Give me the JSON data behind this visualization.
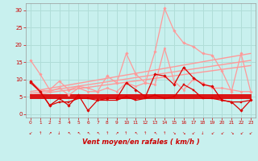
{
  "xlabel": "Vent moyen/en rafales ( km/h )",
  "background_color": "#c8f0ee",
  "grid_color": "#b0ddd8",
  "xlim": [
    -0.5,
    23.5
  ],
  "ylim": [
    -1,
    32
  ],
  "yticks": [
    0,
    5,
    10,
    15,
    20,
    25,
    30
  ],
  "xticks": [
    0,
    1,
    2,
    3,
    4,
    5,
    6,
    7,
    8,
    9,
    10,
    11,
    12,
    13,
    14,
    15,
    16,
    17,
    18,
    19,
    20,
    21,
    22,
    23
  ],
  "series": {
    "light_jagged1": {
      "x": [
        0,
        1,
        2,
        3,
        4,
        5,
        6,
        7,
        8,
        9,
        10,
        11,
        12,
        13,
        14,
        15,
        16,
        17,
        18,
        19,
        20,
        21,
        22,
        23
      ],
      "y": [
        15.5,
        11.5,
        7.0,
        9.5,
        7.0,
        8.0,
        7.5,
        6.5,
        11.0,
        9.0,
        17.5,
        11.5,
        9.0,
        18.0,
        30.5,
        24.0,
        20.5,
        19.5,
        17.5,
        17.0,
        12.5,
        6.5,
        17.5,
        6.5
      ],
      "color": "#ff9999",
      "lw": 0.9,
      "marker": "D",
      "ms": 1.8
    },
    "light_line2": {
      "x": [
        0,
        1,
        2,
        3,
        4,
        5,
        6,
        7,
        8,
        9,
        10,
        11,
        12,
        13,
        14,
        15,
        16,
        17,
        18,
        19,
        20,
        21,
        22,
        23
      ],
      "y": [
        9.5,
        7.0,
        6.5,
        7.5,
        5.5,
        7.5,
        6.5,
        6.5,
        7.5,
        6.5,
        9.0,
        8.0,
        9.0,
        8.5,
        19.0,
        9.5,
        7.0,
        10.0,
        9.0,
        7.5,
        7.5,
        7.0,
        6.5,
        6.5
      ],
      "color": "#ff9999",
      "lw": 0.9,
      "marker": "o",
      "ms": 1.8
    },
    "light_trend1": {
      "x": [
        0,
        23
      ],
      "y": [
        6.5,
        17.5
      ],
      "color": "#ff9999",
      "lw": 1.0
    },
    "light_trend2": {
      "x": [
        0,
        23
      ],
      "y": [
        6.0,
        15.5
      ],
      "color": "#ff9999",
      "lw": 1.0
    },
    "light_trend3": {
      "x": [
        0,
        23
      ],
      "y": [
        5.5,
        14.0
      ],
      "color": "#ff9999",
      "lw": 1.0
    },
    "dark_jagged1": {
      "x": [
        0,
        1,
        2,
        3,
        4,
        5,
        6,
        7,
        8,
        9,
        10,
        11,
        12,
        13,
        14,
        15,
        16,
        17,
        18,
        19,
        20,
        21,
        22,
        23
      ],
      "y": [
        9.5,
        6.5,
        2.5,
        4.5,
        2.5,
        5.5,
        1.0,
        4.0,
        4.5,
        4.5,
        9.0,
        7.0,
        5.0,
        11.5,
        11.0,
        8.5,
        13.5,
        10.5,
        8.5,
        8.0,
        4.0,
        3.5,
        1.0,
        4.0
      ],
      "color": "#dd0000",
      "lw": 0.9,
      "marker": "D",
      "ms": 1.8
    },
    "dark_line2": {
      "x": [
        0,
        1,
        2,
        3,
        4,
        5,
        6,
        7,
        8,
        9,
        10,
        11,
        12,
        13,
        14,
        15,
        16,
        17,
        18,
        19,
        20,
        21,
        22,
        23
      ],
      "y": [
        9.0,
        6.5,
        2.5,
        3.5,
        3.5,
        4.5,
        4.5,
        4.0,
        4.0,
        4.0,
        5.0,
        4.0,
        4.5,
        5.5,
        4.5,
        5.0,
        8.5,
        7.0,
        4.5,
        4.5,
        4.0,
        3.5,
        3.5,
        4.0
      ],
      "color": "#dd0000",
      "lw": 0.9,
      "marker": "s",
      "ms": 1.8
    },
    "dark_trend1": {
      "x": [
        0,
        23
      ],
      "y": [
        5.5,
        5.5
      ],
      "color": "#dd0000",
      "lw": 1.3
    },
    "dark_trend2": {
      "x": [
        0,
        23
      ],
      "y": [
        5.0,
        5.0
      ],
      "color": "#dd0000",
      "lw": 1.3
    },
    "dark_trend3": {
      "x": [
        0,
        23
      ],
      "y": [
        4.5,
        4.5
      ],
      "color": "#dd0000",
      "lw": 1.3
    }
  },
  "wind_arrows": {
    "x": [
      0,
      1,
      2,
      3,
      4,
      5,
      6,
      7,
      8,
      9,
      10,
      11,
      12,
      13,
      14,
      15,
      16,
      17,
      18,
      19,
      20,
      21,
      22,
      23
    ],
    "symbols": [
      "↙",
      "↑",
      "↗",
      "↓",
      "↖",
      "↖",
      "↖",
      "↖",
      "↑",
      "↗",
      "↑",
      "↖",
      "↑",
      "↖",
      "↑",
      "↘",
      "↘",
      "↙",
      "↓",
      "↙",
      "↙",
      "↘",
      "↙",
      "↙"
    ]
  }
}
